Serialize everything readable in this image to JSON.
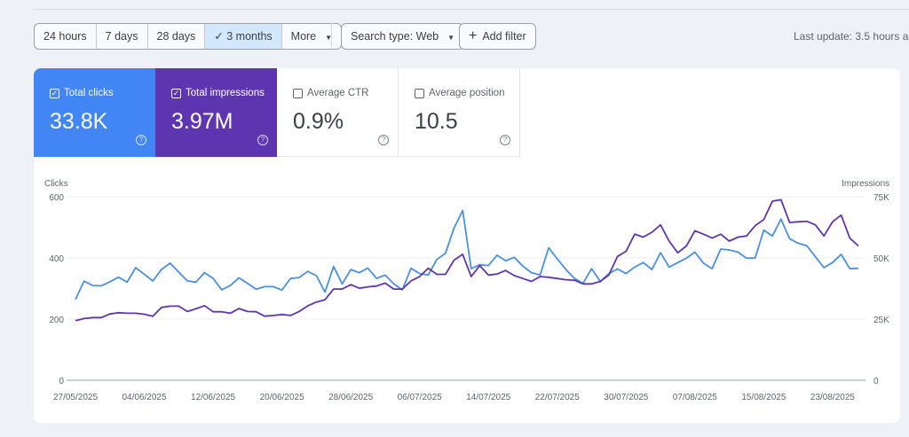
{
  "toolbar": {
    "ranges": [
      "24 hours",
      "7 days",
      "28 days",
      "3 months",
      "More"
    ],
    "selected_range": "3 months",
    "search_type": "Search type: Web",
    "add_filter": "Add filter",
    "last_update": "Last update: 3.5 hours ag"
  },
  "metrics": [
    {
      "label": "Total clicks",
      "value": "33.8K",
      "checked": true,
      "color": "#4285f4"
    },
    {
      "label": "Total impressions",
      "value": "3.97M",
      "checked": true,
      "color": "#5e35b1"
    },
    {
      "label": "Average CTR",
      "value": "0.9%",
      "checked": false
    },
    {
      "label": "Average position",
      "value": "10.5",
      "checked": false
    }
  ],
  "chart_data": {
    "type": "line",
    "left_axis_label": "Clicks",
    "right_axis_label": "Impressions",
    "left_ylim": [
      0,
      600
    ],
    "left_ticks": [
      "0",
      "200",
      "400",
      "600"
    ],
    "right_ylim": [
      0,
      75000
    ],
    "right_ticks": [
      "0",
      "25K",
      "50K",
      "75K"
    ],
    "x_tick_labels": [
      "27/05/2025",
      "04/06/2025",
      "12/06/2025",
      "20/06/2025",
      "28/06/2025",
      "06/07/2025",
      "14/07/2025",
      "22/07/2025",
      "30/07/2025",
      "07/08/2025",
      "15/08/2025",
      "23/08/2025"
    ],
    "grid": true,
    "series": [
      {
        "name": "Clicks",
        "axis": "left",
        "color": "#4a8fe0",
        "values": [
          264,
          324,
          310,
          309,
          322,
          337,
          321,
          368,
          347,
          325,
          362,
          383,
          354,
          325,
          321,
          352,
          333,
          296,
          310,
          335,
          317,
          298,
          306,
          306,
          295,
          333,
          336,
          356,
          342,
          288,
          372,
          315,
          362,
          352,
          367,
          333,
          344,
          315,
          296,
          366,
          349,
          344,
          395,
          415,
          498,
          555,
          365,
          378,
          375,
          409,
          391,
          402,
          373,
          352,
          344,
          433,
          397,
          362,
          333,
          317,
          365,
          323,
          349,
          364,
          349,
          370,
          385,
          362,
          417,
          370,
          385,
          399,
          419,
          383,
          365,
          429,
          426,
          419,
          399,
          400,
          491,
          472,
          527,
          463,
          448,
          440,
          404,
          368,
          385,
          412,
          365,
          366
        ]
      },
      {
        "name": "Impressions",
        "axis": "right",
        "color": "#5e35b1",
        "values": [
          24400,
          25200,
          25600,
          25600,
          27100,
          27600,
          27400,
          27400,
          27000,
          26200,
          29800,
          30300,
          30300,
          28100,
          29200,
          30500,
          28000,
          28000,
          27400,
          29300,
          28100,
          28000,
          26200,
          26500,
          26900,
          26500,
          28100,
          30400,
          32000,
          32900,
          37300,
          37300,
          39100,
          37600,
          38200,
          38500,
          39700,
          37300,
          37300,
          40600,
          42400,
          45800,
          43300,
          43300,
          49100,
          51500,
          42400,
          46900,
          43000,
          43400,
          44900,
          42800,
          41600,
          40400,
          42400,
          42100,
          41600,
          41100,
          40900,
          39400,
          39400,
          40400,
          43000,
          50600,
          52700,
          59700,
          58500,
          60500,
          63500,
          56900,
          52100,
          54900,
          61100,
          59700,
          58100,
          59700,
          56900,
          58500,
          59000,
          63200,
          65700,
          73200,
          73800,
          64500,
          64800,
          65000,
          63500,
          59000,
          64800,
          67500,
          58100,
          54900
        ]
      }
    ]
  }
}
